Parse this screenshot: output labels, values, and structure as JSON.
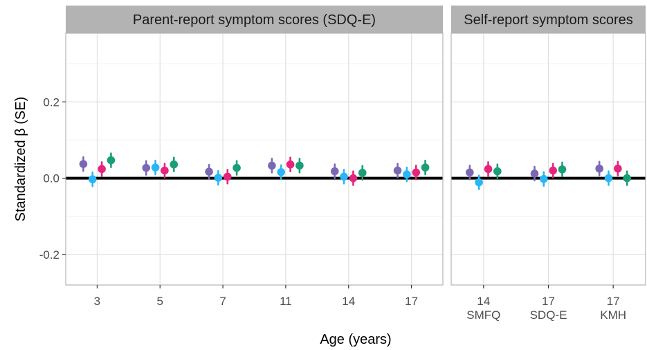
{
  "chart_data": {
    "type": "scatter",
    "xlabel": "Age (years)",
    "ylabel": "Standardized β (SE)",
    "ylim": [
      -0.28,
      0.38
    ],
    "yticks": [
      -0.2,
      0.0,
      0.2
    ],
    "ytick_labels": [
      "-0.2",
      "0.0",
      "0.2"
    ],
    "reference_line": 0.0,
    "grid": true,
    "series_colors": [
      "#7B68B5",
      "#29B6F6",
      "#E5257D",
      "#1A9E77"
    ],
    "panels": [
      {
        "title": "Parent-report symptom scores (SDQ-E)",
        "categories": [
          {
            "label": "3",
            "sublabel": ""
          },
          {
            "label": "5",
            "sublabel": ""
          },
          {
            "label": "7",
            "sublabel": ""
          },
          {
            "label": "11",
            "sublabel": ""
          },
          {
            "label": "14",
            "sublabel": ""
          },
          {
            "label": "17",
            "sublabel": ""
          }
        ],
        "estimates": [
          [
            0.037,
            -0.003,
            0.024,
            0.047
          ],
          [
            0.027,
            0.028,
            0.02,
            0.036
          ],
          [
            0.017,
            0.001,
            0.004,
            0.027
          ],
          [
            0.033,
            0.016,
            0.036,
            0.033
          ],
          [
            0.018,
            0.004,
            0.0,
            0.014
          ],
          [
            0.02,
            0.01,
            0.015,
            0.028
          ]
        ],
        "se": [
          [
            0.018,
            0.018,
            0.018,
            0.018
          ],
          [
            0.018,
            0.018,
            0.018,
            0.018
          ],
          [
            0.018,
            0.018,
            0.018,
            0.018
          ],
          [
            0.018,
            0.018,
            0.018,
            0.018
          ],
          [
            0.018,
            0.018,
            0.018,
            0.018
          ],
          [
            0.018,
            0.018,
            0.018,
            0.018
          ]
        ]
      },
      {
        "title": "Self-report symptom scores",
        "categories": [
          {
            "label": "14",
            "sublabel": "SMFQ"
          },
          {
            "label": "17",
            "sublabel": "SDQ-E"
          },
          {
            "label": "17",
            "sublabel": "KMH"
          }
        ],
        "estimates": [
          [
            0.015,
            -0.011,
            0.024,
            0.018
          ],
          [
            0.012,
            -0.002,
            0.02,
            0.023
          ],
          [
            0.025,
            0.0,
            0.025,
            0.0
          ]
        ],
        "se": [
          [
            0.018,
            0.018,
            0.018,
            0.018
          ],
          [
            0.018,
            0.018,
            0.018,
            0.018
          ],
          [
            0.018,
            0.018,
            0.018,
            0.018
          ]
        ]
      }
    ]
  }
}
